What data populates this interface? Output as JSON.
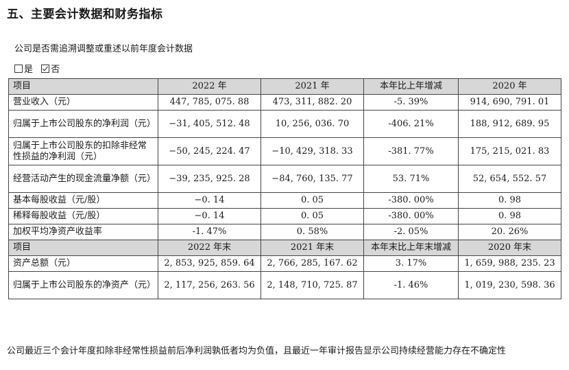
{
  "title": "五、主要会计数据和财务指标",
  "restatement_question": "公司是否需追溯调整或重述以前年度会计数据",
  "options": {
    "yes_label": "是",
    "no_label": "否",
    "selected": "否"
  },
  "table": {
    "header1": [
      "项目",
      "2022 年",
      "2021 年",
      "本年比上年增减",
      "2020 年"
    ],
    "rows1": [
      [
        "营业收入（元）",
        "447, 785, 075. 88",
        "473, 311, 882. 20",
        "-5. 39%",
        "914, 690, 791. 01"
      ],
      [
        "归属于上市公司股东的净利润（元）",
        "−31, 405, 512. 48",
        "10, 256, 036. 70",
        "-406. 21%",
        "188, 912, 689. 95"
      ],
      [
        "归属于上市公司股东的扣除非经常性损益的净利润（元）",
        "−50, 245, 224. 47",
        "−10, 429, 318. 33",
        "-381. 77%",
        "175, 215, 021. 83"
      ],
      [
        "经营活动产生的现金流量净额（元）",
        "−39, 235, 925. 28",
        "−84, 760, 135. 77",
        "53. 71%",
        "52, 654, 552. 57"
      ],
      [
        "基本每股收益（元/股）",
        "−0. 14",
        "0. 05",
        "-380. 00%",
        "0. 98"
      ],
      [
        "稀释每股收益（元/股）",
        "−0. 14",
        "0. 05",
        "-380. 00%",
        "0. 98"
      ],
      [
        "加权平均净资产收益率",
        "-1. 47%",
        "0. 58%",
        "-2. 05%",
        "20. 26%"
      ]
    ],
    "header2": [
      "项目",
      "2022 年末",
      "2021 年末",
      "本年末比上年末增减",
      "2020 年末"
    ],
    "rows2": [
      [
        "资产总额（元）",
        "2, 853, 925, 859. 64",
        "2, 766, 285, 167. 62",
        "3. 17%",
        "1, 659, 988, 235. 23"
      ],
      [
        "归属于上市公司股东的净资产（元）",
        "2, 117, 256, 263. 56",
        "2, 148, 710, 725. 87",
        "-1. 46%",
        "1, 019, 230, 598. 36"
      ]
    ]
  },
  "footer": "公司最近三个会计年度扣除非经常性损益前后净利润孰低者均为负值，且最近一年审计报告显示公司持续经营能力存在不确定性"
}
